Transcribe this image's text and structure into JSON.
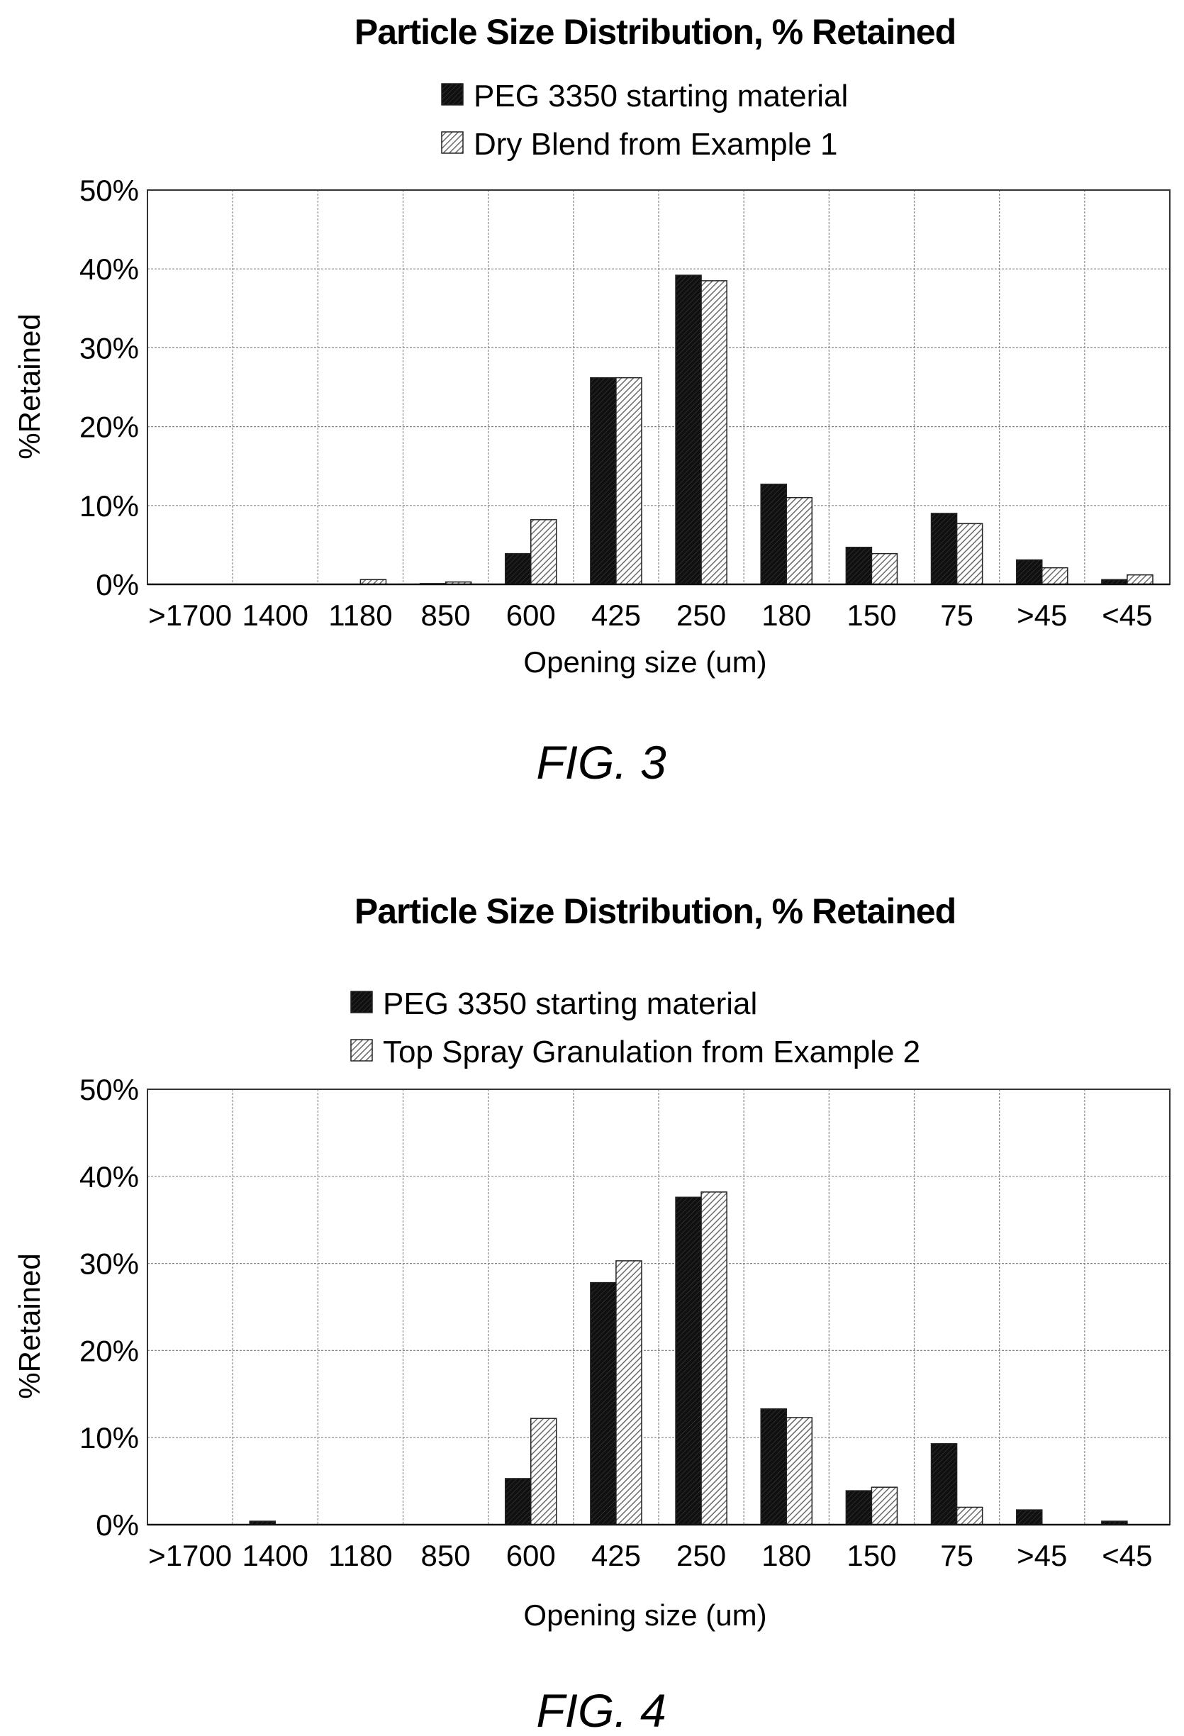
{
  "colors": {
    "series_dark": "#1a1a1a",
    "series_hatched": "#7a7a7a",
    "grid": "#888888",
    "frame": "#333333"
  },
  "figures": [
    {
      "caption": "FIG. 3",
      "chart_data": {
        "type": "bar",
        "title": "Particle Size Distribution, % Retained",
        "xlabel": "Opening size (um)",
        "ylabel": "%Retained",
        "ylim": [
          0,
          50
        ],
        "yticks": [
          "0%",
          "10%",
          "20%",
          "30%",
          "40%",
          "50%"
        ],
        "categories": [
          ">1700",
          "1400",
          "1180",
          "850",
          "600",
          "425",
          "250",
          "180",
          "150",
          "75",
          ">45",
          "<45"
        ],
        "grid": true,
        "legend": "top-center",
        "series": [
          {
            "name": "PEG 3350 starting material",
            "pattern": "solid-dark",
            "values": [
              0,
              0,
              0,
              0.1,
              3.9,
              26.2,
              39.2,
              12.7,
              4.7,
              9.0,
              3.1,
              0.6
            ]
          },
          {
            "name": "Dry Blend from Example 1",
            "pattern": "hatched",
            "values": [
              0,
              0,
              0.6,
              0.3,
              8.2,
              26.2,
              38.5,
              11.0,
              3.9,
              7.7,
              2.1,
              1.2
            ]
          }
        ]
      }
    },
    {
      "caption": "FIG. 4",
      "chart_data": {
        "type": "bar",
        "title": "Particle Size Distribution, % Retained",
        "xlabel": "Opening size (um)",
        "ylabel": "%Retained",
        "ylim": [
          0,
          50
        ],
        "yticks": [
          "0%",
          "10%",
          "20%",
          "30%",
          "40%",
          "50%"
        ],
        "categories": [
          ">1700",
          "1400",
          "1180",
          "850",
          "600",
          "425",
          "250",
          "180",
          "150",
          "75",
          ">45",
          "<45"
        ],
        "grid": true,
        "legend": "top-center",
        "series": [
          {
            "name": "PEG 3350 starting material",
            "pattern": "solid-dark",
            "values": [
              0,
              0.4,
              0,
              0,
              5.3,
              27.8,
              37.6,
              13.3,
              3.9,
              9.3,
              1.7,
              0.4
            ]
          },
          {
            "name": "Top Spray Granulation from Example 2",
            "pattern": "hatched",
            "values": [
              0,
              0,
              0,
              0,
              12.2,
              30.3,
              38.2,
              12.3,
              4.3,
              2.0,
              0,
              0
            ]
          }
        ]
      }
    }
  ]
}
